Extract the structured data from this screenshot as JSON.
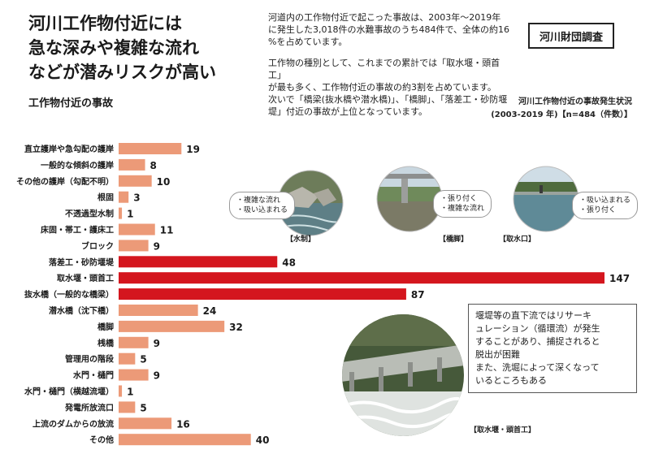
{
  "header": {
    "headline_lines": [
      "河川工作物付近には",
      "急な深みや複雑な流れ",
      "などが潜みリスクが高い"
    ],
    "subhead": "工作物付近の事故"
  },
  "description": {
    "p1": [
      "河道内の工作物付近で起こった事故は、2003年～2019年",
      "に発生した3,018件の水難事故のうち484件で、全体の約16",
      "%を占めています。"
    ],
    "p2": [
      "工作物の種別として、これまでの累計では「取水堰・頭首工」",
      "が最も多く、工作物付近の事故の約3割を占めています。",
      "次いで「橋梁(抜水橋や潜水橋)」、「橋脚」、「落差工・砂防堰",
      "堤」付近の事故が上位となっています。"
    ]
  },
  "source": "河川財団調査",
  "caption": [
    "河川工作物付近の事故発生状況",
    "(2003-2019 年)【n=484（件数）】"
  ],
  "photos": [
    {
      "label": "【水制】",
      "bubble": [
        "・複雑な流れ",
        "・吸い込まれる"
      ]
    },
    {
      "label": "【橋脚】",
      "bubble": [
        "・張り付く",
        "・複雑な流れ"
      ]
    },
    {
      "label": "【取水口】",
      "bubble": [
        "・吸い込まれる",
        "・張り付く"
      ]
    },
    {
      "label": "【取水堰・頭首工】"
    }
  ],
  "note": [
    "堰堤等の直下流ではリサーキ",
    "ュレーション（循環流）が発生",
    "することがあり、捕捉されると",
    "脱出が困難",
    "また、洗堀によって深くなって",
    "いるところもある"
  ],
  "colors": {
    "salmon": "#ec9a78",
    "red": "#d4161e"
  },
  "chart_data": {
    "type": "bar",
    "orientation": "horizontal",
    "categories": [
      "直立護岸や急勾配の護岸",
      "一般的な傾斜の護岸",
      "その他の護岸（勾配不明）",
      "根固",
      "不透過型水制",
      "床固・帯工・護床工",
      "ブロック",
      "落差工・砂防堰堤",
      "取水堰・頭首工",
      "抜水橋（一般的な橋梁）",
      "潜水橋（沈下橋）",
      "橋脚",
      "桟橋",
      "管理用の階段",
      "水門・樋門",
      "水門・樋門（横越流堰）",
      "発電所放流口",
      "上流のダムからの放流",
      "その他"
    ],
    "values": [
      19,
      8,
      10,
      3,
      1,
      11,
      9,
      48,
      147,
      87,
      24,
      32,
      9,
      5,
      9,
      1,
      5,
      16,
      40
    ],
    "highlight": [
      false,
      false,
      false,
      false,
      false,
      false,
      false,
      true,
      true,
      true,
      false,
      false,
      false,
      false,
      false,
      false,
      false,
      false,
      false
    ],
    "xlim": [
      0,
      147
    ]
  }
}
